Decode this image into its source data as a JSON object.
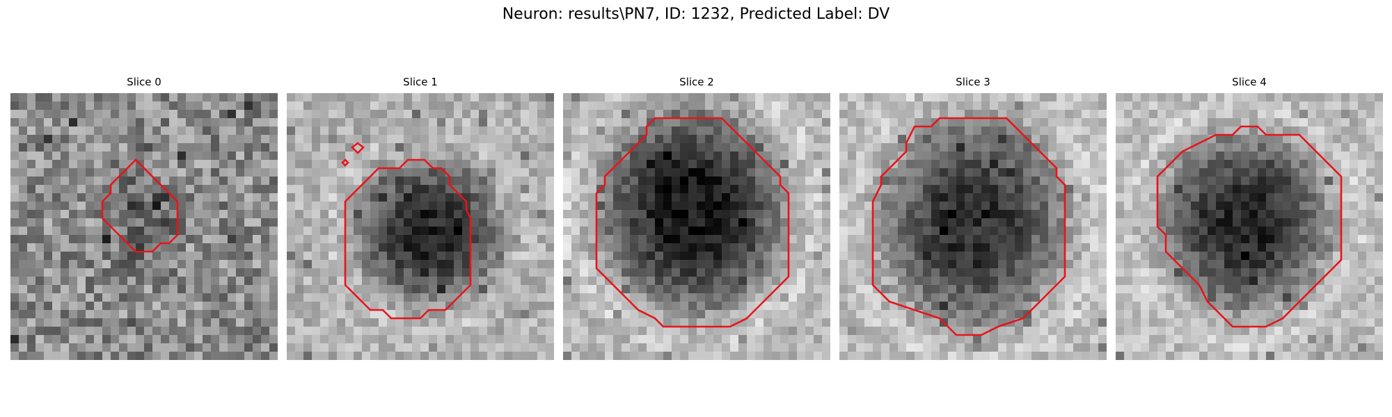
{
  "figure": {
    "title": "Neuron: results\\PN7, ID: 1232, Predicted Label: DV"
  },
  "panels": [
    {
      "title": "Slice 0"
    },
    {
      "title": "Slice 1"
    },
    {
      "title": "Slice 2"
    },
    {
      "title": "Slice 3"
    },
    {
      "title": "Slice 4"
    }
  ],
  "contour_color": "#e8141a",
  "colormap": "gray"
}
